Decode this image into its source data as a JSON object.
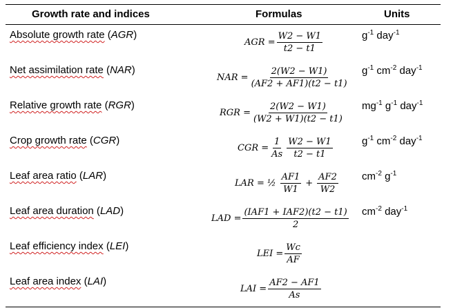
{
  "header": {
    "col_index": "Growth rate and indices",
    "col_formula": "Formulas",
    "col_units": "Units"
  },
  "rows": [
    {
      "name": "Absolute growth rate",
      "abbr": "AGR",
      "formula": {
        "lhs": "AGR =",
        "num": "W2 − W1",
        "den": "t2 − t1"
      },
      "unit": [
        [
          "g",
          "-1"
        ],
        [
          " day",
          "-1"
        ]
      ]
    },
    {
      "name": "Net assimilation rate",
      "abbr": "NAR",
      "formula": {
        "lhs": "NAR =",
        "num": "2(W2 − W1)",
        "den": "(AF2 + AF1)(t2 − t1)"
      },
      "unit": [
        [
          "g",
          "-1"
        ],
        [
          " cm",
          "-2"
        ],
        [
          " day",
          "-1"
        ]
      ]
    },
    {
      "name": "Relative growth rate",
      "abbr": "RGR",
      "formula": {
        "lhs": "RGR =",
        "num": "2(W2 − W1)",
        "den": "(W2 + W1)(t2 − t1)"
      },
      "unit": [
        [
          "mg",
          "-1"
        ],
        [
          " g",
          "-1"
        ],
        [
          " day",
          "-1"
        ]
      ]
    },
    {
      "name": "Crop growth rate",
      "abbr": "CGR",
      "formula": {
        "lhs": "CGR =",
        "num1": "1",
        "den1": "As",
        "num": "W2 − W1",
        "den": "t2 − t1"
      },
      "unit": [
        [
          "g",
          "-1"
        ],
        [
          " cm",
          "-2"
        ],
        [
          " day",
          "-1"
        ]
      ]
    },
    {
      "name": "Leaf area ratio",
      "abbr": "LAR",
      "formula": {
        "lhs": "LAR = ½",
        "num1": "AF1",
        "den1": "W1",
        "plus": "+",
        "num": "AF2",
        "den": "W2"
      },
      "unit": [
        [
          "cm",
          "-2"
        ],
        [
          " g",
          "-1"
        ]
      ]
    },
    {
      "name": "Leaf area duration",
      "abbr": "LAD",
      "formula": {
        "lhs": "LAD =",
        "num": "(IAF1 + IAF2)(t2 − t1)",
        "den": "2"
      },
      "unit": [
        [
          "cm",
          "-2"
        ],
        [
          " day",
          "-1"
        ]
      ]
    },
    {
      "name": "Leaf efficiency index",
      "abbr": "LEI",
      "formula": {
        "lhs": "LEI =",
        "num": "Wc",
        "den": "AF"
      },
      "unit": []
    },
    {
      "name": "Leaf area index",
      "abbr": "LAI",
      "formula": {
        "lhs": "LAI =",
        "num": "AF2 − AF1",
        "den": "As"
      },
      "unit": []
    }
  ]
}
